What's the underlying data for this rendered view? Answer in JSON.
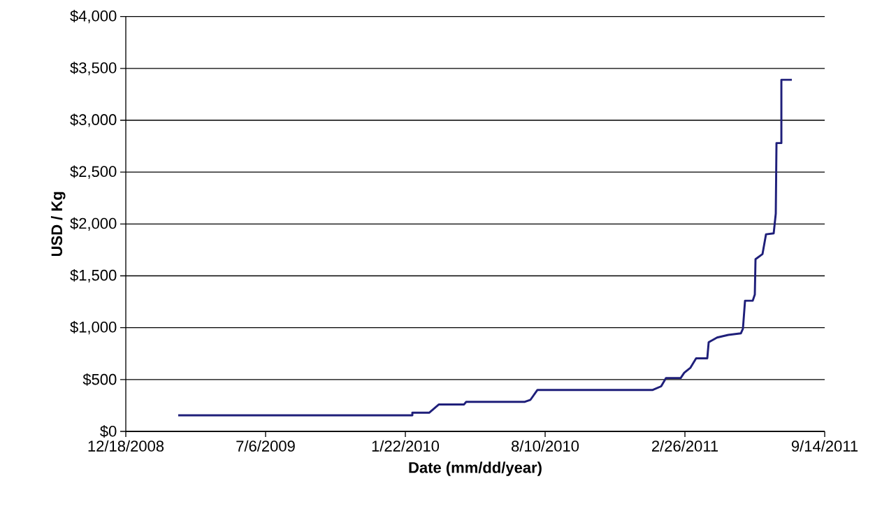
{
  "chart_data": {
    "type": "line",
    "xlabel": "Date (mm/dd/year)",
    "ylabel": "USD / Kg",
    "x": [
      "2009-03-03",
      "2010-02-01",
      "2010-02-01",
      "2010-02-25",
      "2010-03-11",
      "2010-04-16",
      "2010-04-19",
      "2010-07-12",
      "2010-07-20",
      "2010-07-30",
      "2011-01-11",
      "2011-01-23",
      "2011-01-30",
      "2011-02-20",
      "2011-02-25",
      "2011-03-06",
      "2011-03-14",
      "2011-03-30",
      "2011-04-01",
      "2011-04-13",
      "2011-04-29",
      "2011-05-17",
      "2011-05-20",
      "2011-05-23",
      "2011-06-03",
      "2011-06-06",
      "2011-06-07",
      "2011-06-17",
      "2011-06-22",
      "2011-07-03",
      "2011-07-06",
      "2011-07-07",
      "2011-07-14",
      "2011-07-14",
      "2011-07-29"
    ],
    "series": [
      {
        "color": "#1f1f7a",
        "values": [
          155,
          155,
          180,
          180,
          260,
          260,
          285,
          285,
          305,
          400,
          400,
          435,
          515,
          515,
          565,
          615,
          705,
          705,
          860,
          905,
          930,
          945,
          990,
          1260,
          1260,
          1320,
          1660,
          1710,
          1900,
          1910,
          2100,
          2780,
          2780,
          3390,
          3390
        ]
      }
    ],
    "xlim": [
      "2008-12-18",
      "2011-09-14"
    ],
    "xticks": [
      {
        "value": "2008-12-18",
        "label": "12/18/2008"
      },
      {
        "value": "2009-07-06",
        "label": "7/6/2009"
      },
      {
        "value": "2010-01-22",
        "label": "1/22/2010"
      },
      {
        "value": "2010-08-10",
        "label": "8/10/2010"
      },
      {
        "value": "2011-02-26",
        "label": "2/26/2011"
      },
      {
        "value": "2011-09-14",
        "label": "9/14/2011"
      }
    ],
    "ylim": [
      0,
      4000
    ],
    "yticks": [
      {
        "value": 0,
        "label": "$0"
      },
      {
        "value": 500,
        "label": "$500"
      },
      {
        "value": 1000,
        "label": "$1,000"
      },
      {
        "value": 1500,
        "label": "$1,500"
      },
      {
        "value": 2000,
        "label": "$2,000"
      },
      {
        "value": 2500,
        "label": "$2,500"
      },
      {
        "value": 3000,
        "label": "$3,000"
      },
      {
        "value": 3500,
        "label": "$3,500"
      },
      {
        "value": 4000,
        "label": "$4,000"
      }
    ],
    "grid": "y",
    "line_style": "solid"
  }
}
